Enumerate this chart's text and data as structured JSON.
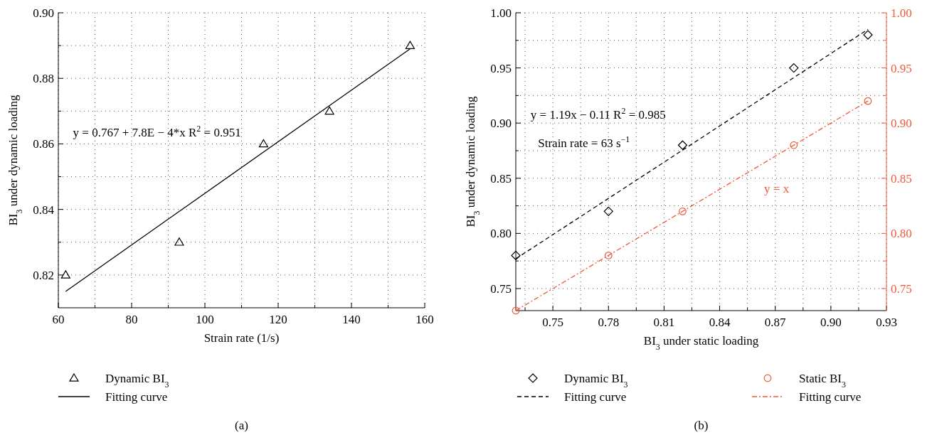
{
  "chart_data": [
    {
      "type": "scatter",
      "title": "(a)",
      "xlabel": "Strain rate (1/s)",
      "ylabel": "BI$_{3}$ under dynamic loading",
      "xlim": [
        60,
        160
      ],
      "xticks": [
        60,
        {
          "value": 70,
          "label": null
        },
        80,
        {
          "value": 90,
          "label": null
        },
        100,
        {
          "value": 110,
          "label": null
        },
        120,
        {
          "value": 130,
          "label": null
        },
        140,
        {
          "value": 150,
          "label": null
        },
        160
      ],
      "ylim": [
        0.81,
        0.9
      ],
      "yticks": [
        {
          "value": 0.82,
          "label": "0.82"
        },
        {
          "value": 0.83,
          "label": null
        },
        {
          "value": 0.84,
          "label": "0.84"
        },
        {
          "value": 0.85,
          "label": null
        },
        {
          "value": 0.86,
          "label": "0.86"
        },
        {
          "value": 0.87,
          "label": null
        },
        {
          "value": 0.88,
          "label": "0.88"
        },
        {
          "value": 0.89,
          "label": null
        },
        {
          "value": 0.9,
          "label": "0.90"
        }
      ],
      "grid": true,
      "legend": "bottom",
      "annotations": [
        "y = 0.767 + 7.8E − 4*x R$^{2}$ = 0.951"
      ],
      "series": [
        {
          "name": "Dynamic BI$_{3}$",
          "type": "scatter",
          "marker": "triangle",
          "color": "#000000",
          "x": [
            62,
            93,
            116,
            134,
            156
          ],
          "values": [
            0.82,
            0.83,
            0.86,
            0.87,
            0.89
          ]
        },
        {
          "name": "Fitting curve",
          "type": "line",
          "marker": "none",
          "line_style": "solid",
          "color": "#000000",
          "x": [
            62,
            156
          ],
          "values": [
            0.815,
            0.889
          ]
        }
      ]
    },
    {
      "type": "scatter",
      "title": "(b)",
      "xlabel": "BI$_{3}$ under static loading",
      "ylabel": "BI$_{3}$ under dynamic loading",
      "xlim": [
        0.73,
        0.93
      ],
      "xticks": [
        {
          "value": 0.735,
          "label": null
        },
        {
          "value": 0.75,
          "label": "0.75"
        },
        {
          "value": 0.765,
          "label": null
        },
        {
          "value": 0.78,
          "label": "0.78"
        },
        {
          "value": 0.795,
          "label": null
        },
        {
          "value": 0.81,
          "label": "0.81"
        },
        {
          "value": 0.825,
          "label": null
        },
        {
          "value": 0.84,
          "label": "0.84"
        },
        {
          "value": 0.855,
          "label": null
        },
        {
          "value": 0.87,
          "label": "0.87"
        },
        {
          "value": 0.885,
          "label": null
        },
        {
          "value": 0.9,
          "label": "0.90"
        },
        {
          "value": 0.915,
          "label": null
        },
        {
          "value": 0.93,
          "label": "0.93"
        }
      ],
      "ylim": [
        0.73,
        1.0
      ],
      "yticks": [
        {
          "value": 0.75,
          "label": "0.75"
        },
        {
          "value": 0.775,
          "label": null
        },
        {
          "value": 0.8,
          "label": "0.80"
        },
        {
          "value": 0.825,
          "label": null
        },
        {
          "value": 0.85,
          "label": "0.85"
        },
        {
          "value": 0.875,
          "label": null
        },
        {
          "value": 0.9,
          "label": "0.90"
        },
        {
          "value": 0.925,
          "label": null
        },
        {
          "value": 0.95,
          "label": "0.95"
        },
        {
          "value": 0.975,
          "label": null
        },
        {
          "value": 1.0,
          "label": "1.00"
        }
      ],
      "y2lim": [
        0.73,
        1.0
      ],
      "y2ticks": [
        {
          "value": 0.75,
          "label": "0.75"
        },
        {
          "value": 0.775,
          "label": null
        },
        {
          "value": 0.8,
          "label": "0.80"
        },
        {
          "value": 0.825,
          "label": null
        },
        {
          "value": 0.85,
          "label": "0.85"
        },
        {
          "value": 0.875,
          "label": null
        },
        {
          "value": 0.9,
          "label": "0.90"
        },
        {
          "value": 0.925,
          "label": null
        },
        {
          "value": 0.95,
          "label": "0.95"
        },
        {
          "value": 0.975,
          "label": null
        },
        {
          "value": 1.0,
          "label": "1.00"
        }
      ],
      "grid": true,
      "legend": "bottom",
      "annotations": [
        "y = 1.19x − 0.11 R$^{2}$ = 0.985",
        "Strain rate = 63 s$^{−1}$",
        "y = x"
      ],
      "series": [
        {
          "name": "Dynamic BI$_{3}$",
          "type": "scatter",
          "marker": "diamond",
          "color": "#000000",
          "x": [
            0.73,
            0.78,
            0.82,
            0.88,
            0.92
          ],
          "values": [
            0.78,
            0.82,
            0.88,
            0.95,
            0.98
          ]
        },
        {
          "name": "Fitting curve",
          "type": "line",
          "marker": "none",
          "line_style": "dashed",
          "color": "#000000",
          "x": [
            0.73,
            0.92
          ],
          "values": [
            0.777,
            0.985
          ]
        },
        {
          "name": "Static BI$_{3}$",
          "type": "scatter",
          "marker": "circle",
          "axis": "y2",
          "color": "#f05a3c",
          "x": [
            0.73,
            0.78,
            0.82,
            0.88,
            0.92
          ],
          "values": [
            0.73,
            0.78,
            0.82,
            0.88,
            0.92
          ]
        },
        {
          "name": "Fitting curve",
          "type": "line",
          "marker": "none",
          "line_style": "dashed",
          "axis": "y2",
          "color": "#f05a3c",
          "x": [
            0.73,
            0.92
          ],
          "values": [
            0.73,
            0.92
          ]
        }
      ]
    }
  ]
}
